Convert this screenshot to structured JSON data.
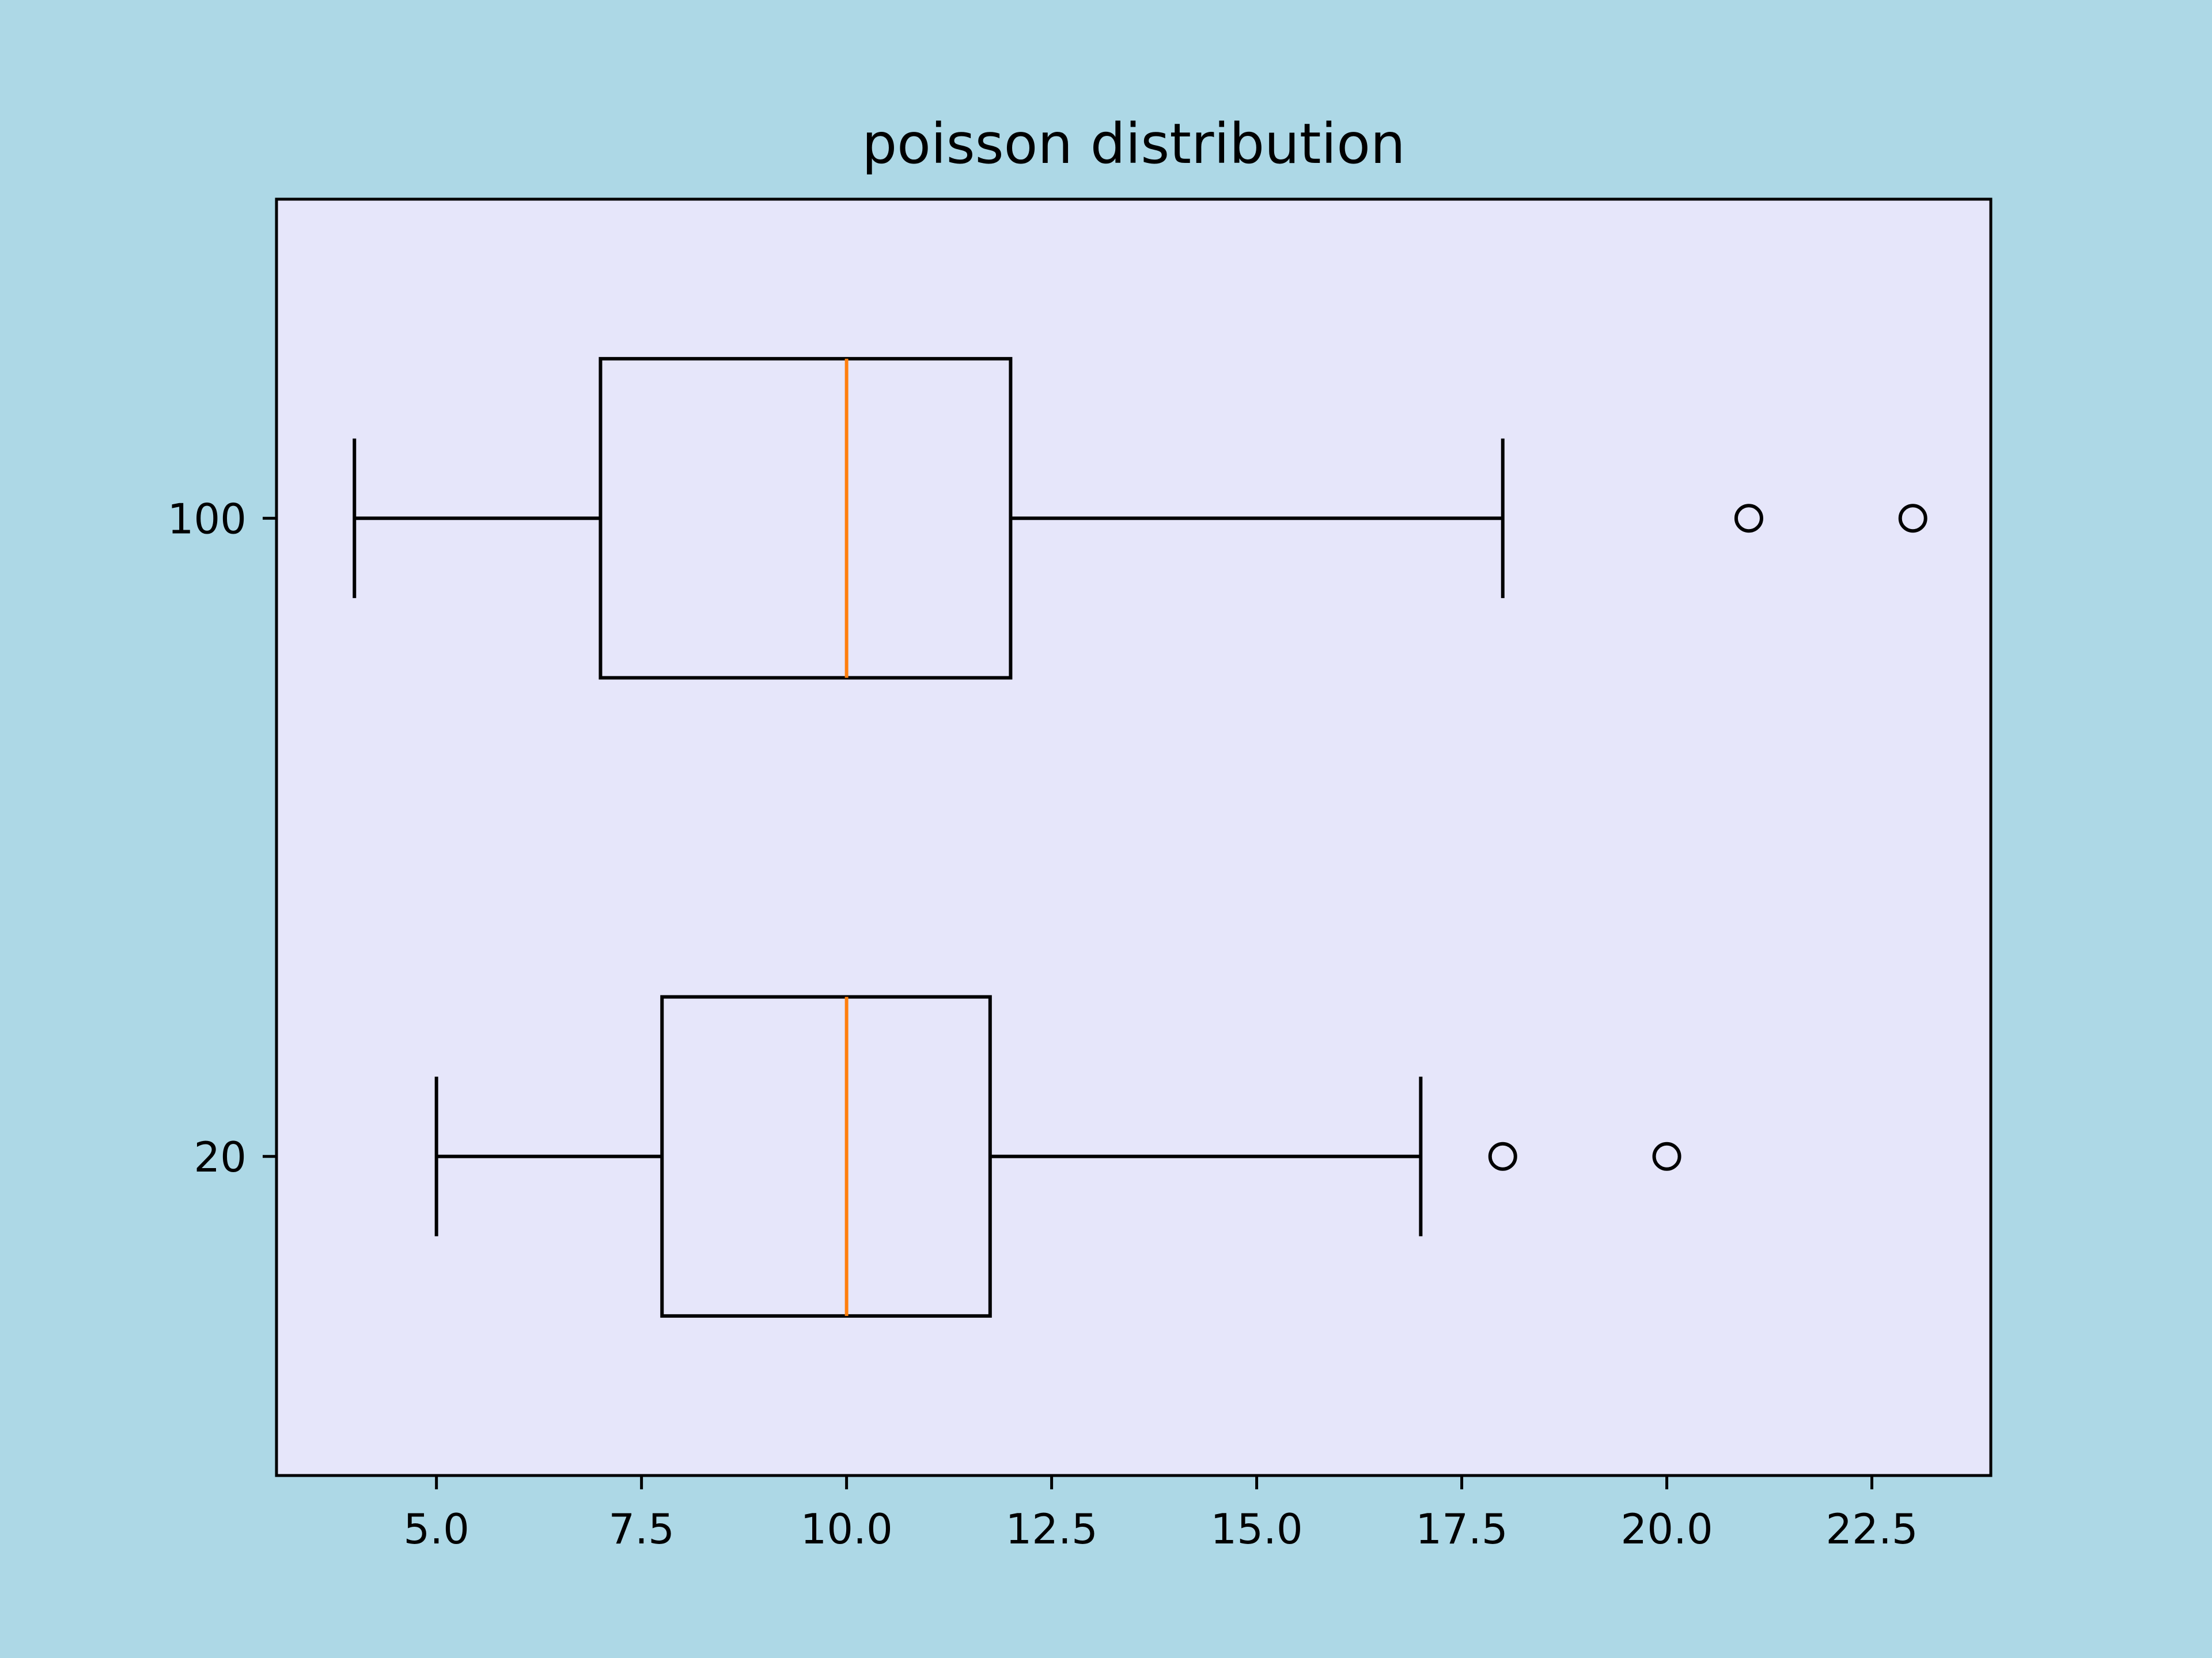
{
  "chart_data": {
    "type": "boxplot",
    "orientation": "horizontal",
    "title": "poisson distribution",
    "xlabel": "",
    "ylabel": "",
    "xlim": [
      3.05,
      23.95
    ],
    "x_ticks": [
      5.0,
      7.5,
      10.0,
      12.5,
      15.0,
      17.5,
      20.0,
      22.5
    ],
    "x_tick_labels": [
      "5.0",
      "7.5",
      "10.0",
      "12.5",
      "15.0",
      "17.5",
      "20.0",
      "22.5"
    ],
    "categories": [
      "20",
      "100"
    ],
    "series": [
      {
        "category": "20",
        "whisker_low": 5,
        "q1": 7.75,
        "median": 10,
        "q3": 11.75,
        "whisker_high": 17,
        "outliers": [
          18,
          20
        ]
      },
      {
        "category": "100",
        "whisker_low": 4,
        "q1": 7,
        "median": 10,
        "q3": 12,
        "whisker_high": 18,
        "outliers": [
          21,
          23
        ]
      }
    ],
    "grid": false,
    "colors": {
      "figure_background": "#add8e6",
      "axes_background": "#e6e6fa",
      "box": "#000000",
      "median": "#ff7f0e"
    }
  }
}
